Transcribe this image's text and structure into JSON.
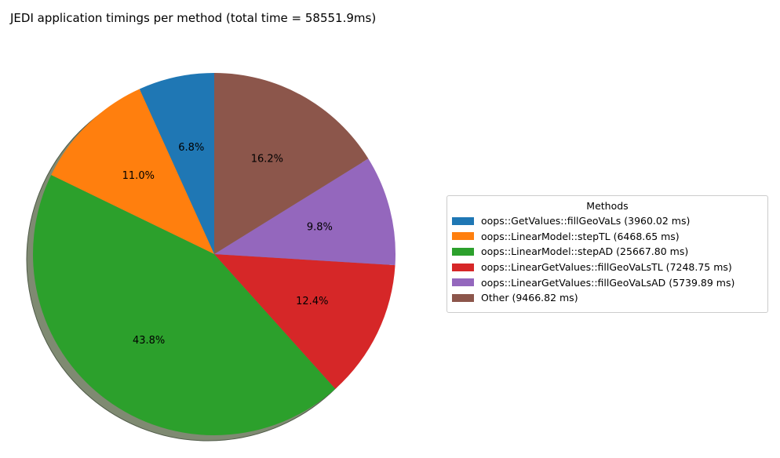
{
  "chart_data": {
    "type": "pie",
    "title": "JEDI application timings per method (total time = 58551.9ms)",
    "legend_title": "Methods",
    "legend_position": "right",
    "start_angle_deg": 90,
    "direction": "counterclockwise",
    "shadow": true,
    "slices": [
      {
        "label": "oops::GetValues::fillGeoVaLs (3960.02 ms)",
        "value": 3960.02,
        "pct_label": "6.8%",
        "color": "#1f77b4"
      },
      {
        "label": "oops::LinearModel::stepTL (6468.65 ms)",
        "value": 6468.65,
        "pct_label": "11.0%",
        "color": "#ff7f0e"
      },
      {
        "label": "oops::LinearModel::stepAD (25667.80 ms)",
        "value": 25667.8,
        "pct_label": "43.8%",
        "color": "#2ca02c"
      },
      {
        "label": "oops::LinearGetValues::fillGeoVaLsTL (7248.75 ms)",
        "value": 7248.75,
        "pct_label": "12.4%",
        "color": "#d62728"
      },
      {
        "label": "oops::LinearGetValues::fillGeoVaLsAD (5739.89 ms)",
        "value": 5739.89,
        "pct_label": "9.8%",
        "color": "#9467bd"
      },
      {
        "label": "Other (9466.82 ms)",
        "value": 9466.82,
        "pct_label": "16.2%",
        "color": "#8c564b"
      }
    ]
  }
}
